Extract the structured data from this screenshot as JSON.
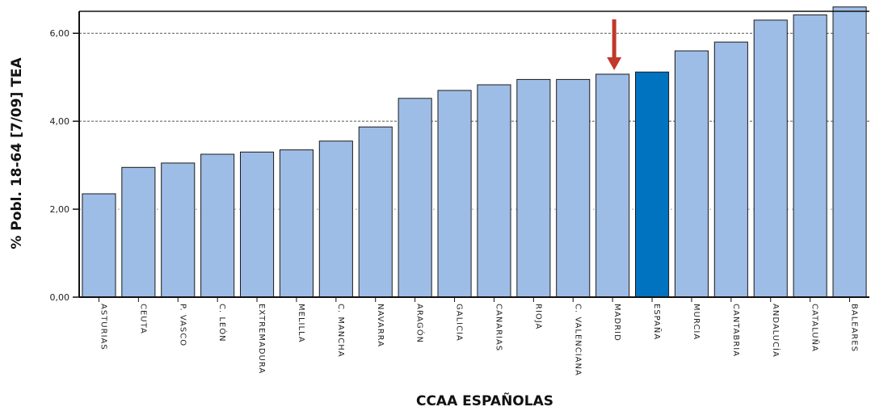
{
  "chart_data": {
    "type": "bar",
    "title": "",
    "xlabel": "CCAA ESPAÑOLAS",
    "ylabel": "% Pobl. 18-64 [7/09] TEA",
    "ylim": [
      0,
      6.5
    ],
    "yticks": [
      0,
      2,
      4,
      6
    ],
    "ytick_labels": [
      "0,00",
      "2,00",
      "4,00",
      "6,00"
    ],
    "grid": "dotted horizontal at 2,00; dashed at 4,00 and 6,00",
    "categories": [
      "ASTURIAS",
      "CEUTA",
      "P. VASCO",
      "C. LEÓN",
      "EXTREMADURA",
      "MELILLA",
      "C. MANCHA",
      "NAVARRA",
      "ARAGÓN",
      "GALICIA",
      "CANARIAS",
      "RIOJA",
      "C. VALENCIANA",
      "MADRID",
      "ESPAÑA",
      "MURCIA",
      "CANTABRIA",
      "ANDALUCÍA",
      "CATALUÑA",
      "BALEARES"
    ],
    "values": [
      2.35,
      2.95,
      3.05,
      3.25,
      3.3,
      3.35,
      3.55,
      3.87,
      4.52,
      4.7,
      4.83,
      4.95,
      4.95,
      5.07,
      5.12,
      5.6,
      5.8,
      6.3,
      6.42,
      6.6
    ],
    "highlight_category": "ESPAÑA",
    "arrow_category": "MADRID",
    "colors": {
      "bar": "#9dbde6",
      "highlight_bar": "#0073c0",
      "arrow": "#c0392b",
      "bar_stroke": "#1a1a1a"
    }
  }
}
